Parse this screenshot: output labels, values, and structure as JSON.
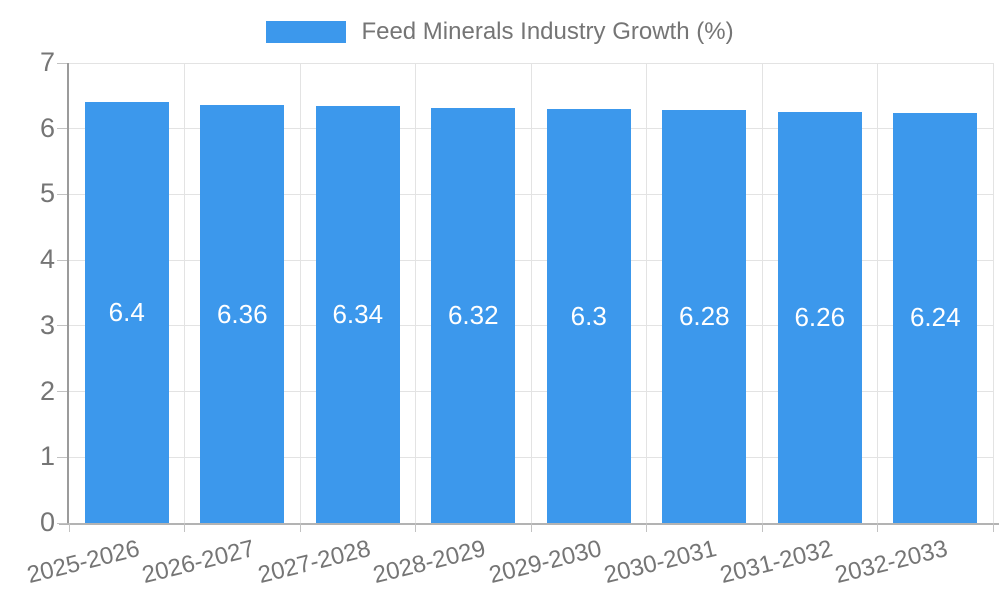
{
  "chart_data": {
    "type": "bar",
    "title": "Feed Minerals Industry Growth (%)",
    "legend": {
      "position": "top",
      "label": "Feed Minerals Industry Growth (%)"
    },
    "categories": [
      "2025-2026",
      "2026-2027",
      "2027-2028",
      "2028-2029",
      "2029-2030",
      "2030-2031",
      "2031-2032",
      "2032-2033"
    ],
    "values": [
      6.4,
      6.36,
      6.34,
      6.32,
      6.3,
      6.28,
      6.26,
      6.24
    ],
    "value_labels": [
      "6.4",
      "6.36",
      "6.34",
      "6.32",
      "6.3",
      "6.28",
      "6.26",
      "6.24"
    ],
    "xlabel": "",
    "ylabel": "",
    "ylim": [
      0,
      7
    ],
    "yticks": [
      0,
      1,
      2,
      3,
      4,
      5,
      6,
      7
    ],
    "grid": true,
    "colors": {
      "bar": "#3C98EC",
      "bar_label": "#FFFFFF",
      "axis_text": "#757575",
      "grid_line": "#E3E3E3",
      "axis_line": "#9B9B9B",
      "background": "#FFFFFF"
    }
  }
}
